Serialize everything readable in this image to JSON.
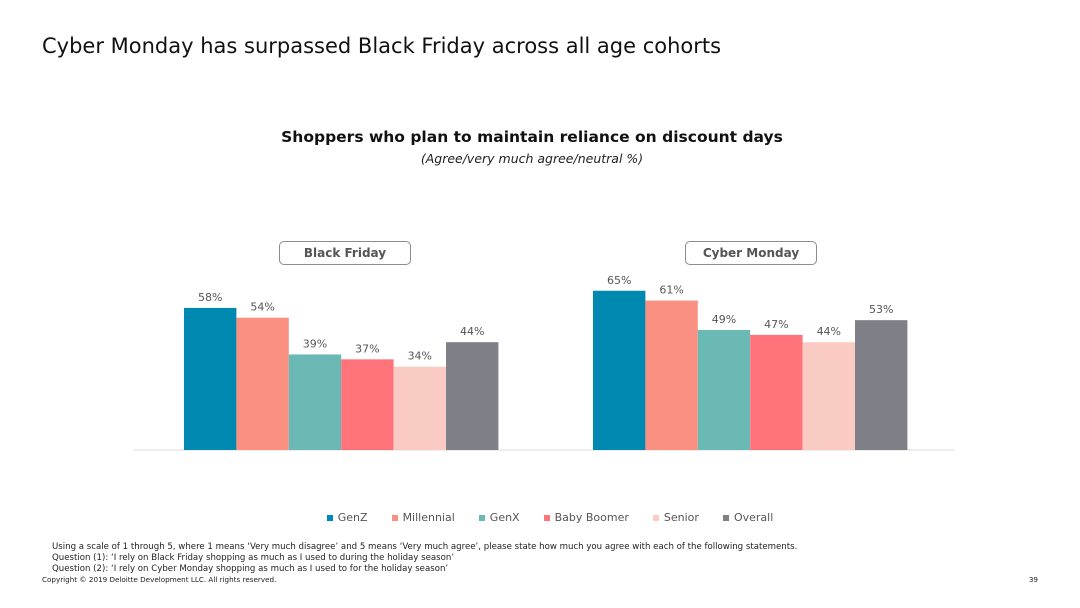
{
  "slide": {
    "title": "Cyber Monday has surpassed Black Friday across all age cohorts",
    "page_number": "39",
    "copyright": "Copyright © 2019 Deloitte Development LLC. All rights reserved."
  },
  "footnotes": [
    "Using a scale of 1 through 5, where 1 means ‘Very much disagree’ and 5 means ‘Very much agree’, please state how much you agree with each of the following statements.",
    "Question (1): ‘I rely on Black Friday shopping as much as I used to during the holiday season’",
    "Question (2): ‘I rely on Cyber Monday shopping as much as I used to for the holiday season’"
  ],
  "chart_data": {
    "type": "bar",
    "title": "Shoppers who plan to maintain reliance on discount days",
    "subtitle": "(Agree/very much agree/neutral %)",
    "categories": [
      "Black Friday",
      "Cyber Monday"
    ],
    "series": [
      {
        "name": "GenZ",
        "color": "#0089B0",
        "values": [
          58,
          65
        ],
        "labels": [
          "58%",
          "65%"
        ]
      },
      {
        "name": "Millennial",
        "color": "#FA9082",
        "values": [
          54,
          61
        ],
        "labels": [
          "54%",
          "61%"
        ]
      },
      {
        "name": "GenX",
        "color": "#6AB9B4",
        "values": [
          39,
          49
        ],
        "labels": [
          "39%",
          "49%"
        ]
      },
      {
        "name": "Baby Boomer",
        "color": "#FF737A",
        "values": [
          37,
          47
        ],
        "labels": [
          "37%",
          "47%"
        ]
      },
      {
        "name": "Senior",
        "color": "#FACBC2",
        "values": [
          34,
          44
        ],
        "labels": [
          "34%",
          "44%"
        ]
      },
      {
        "name": "Overall",
        "color": "#7F8087",
        "values": [
          44,
          53
        ],
        "labels": [
          "44%",
          "53%"
        ]
      }
    ],
    "ylim": [
      0,
      75
    ],
    "grid": false,
    "legend_position": "bottom",
    "baseline_color": "#D9D9D9",
    "label_color": "#555555"
  }
}
